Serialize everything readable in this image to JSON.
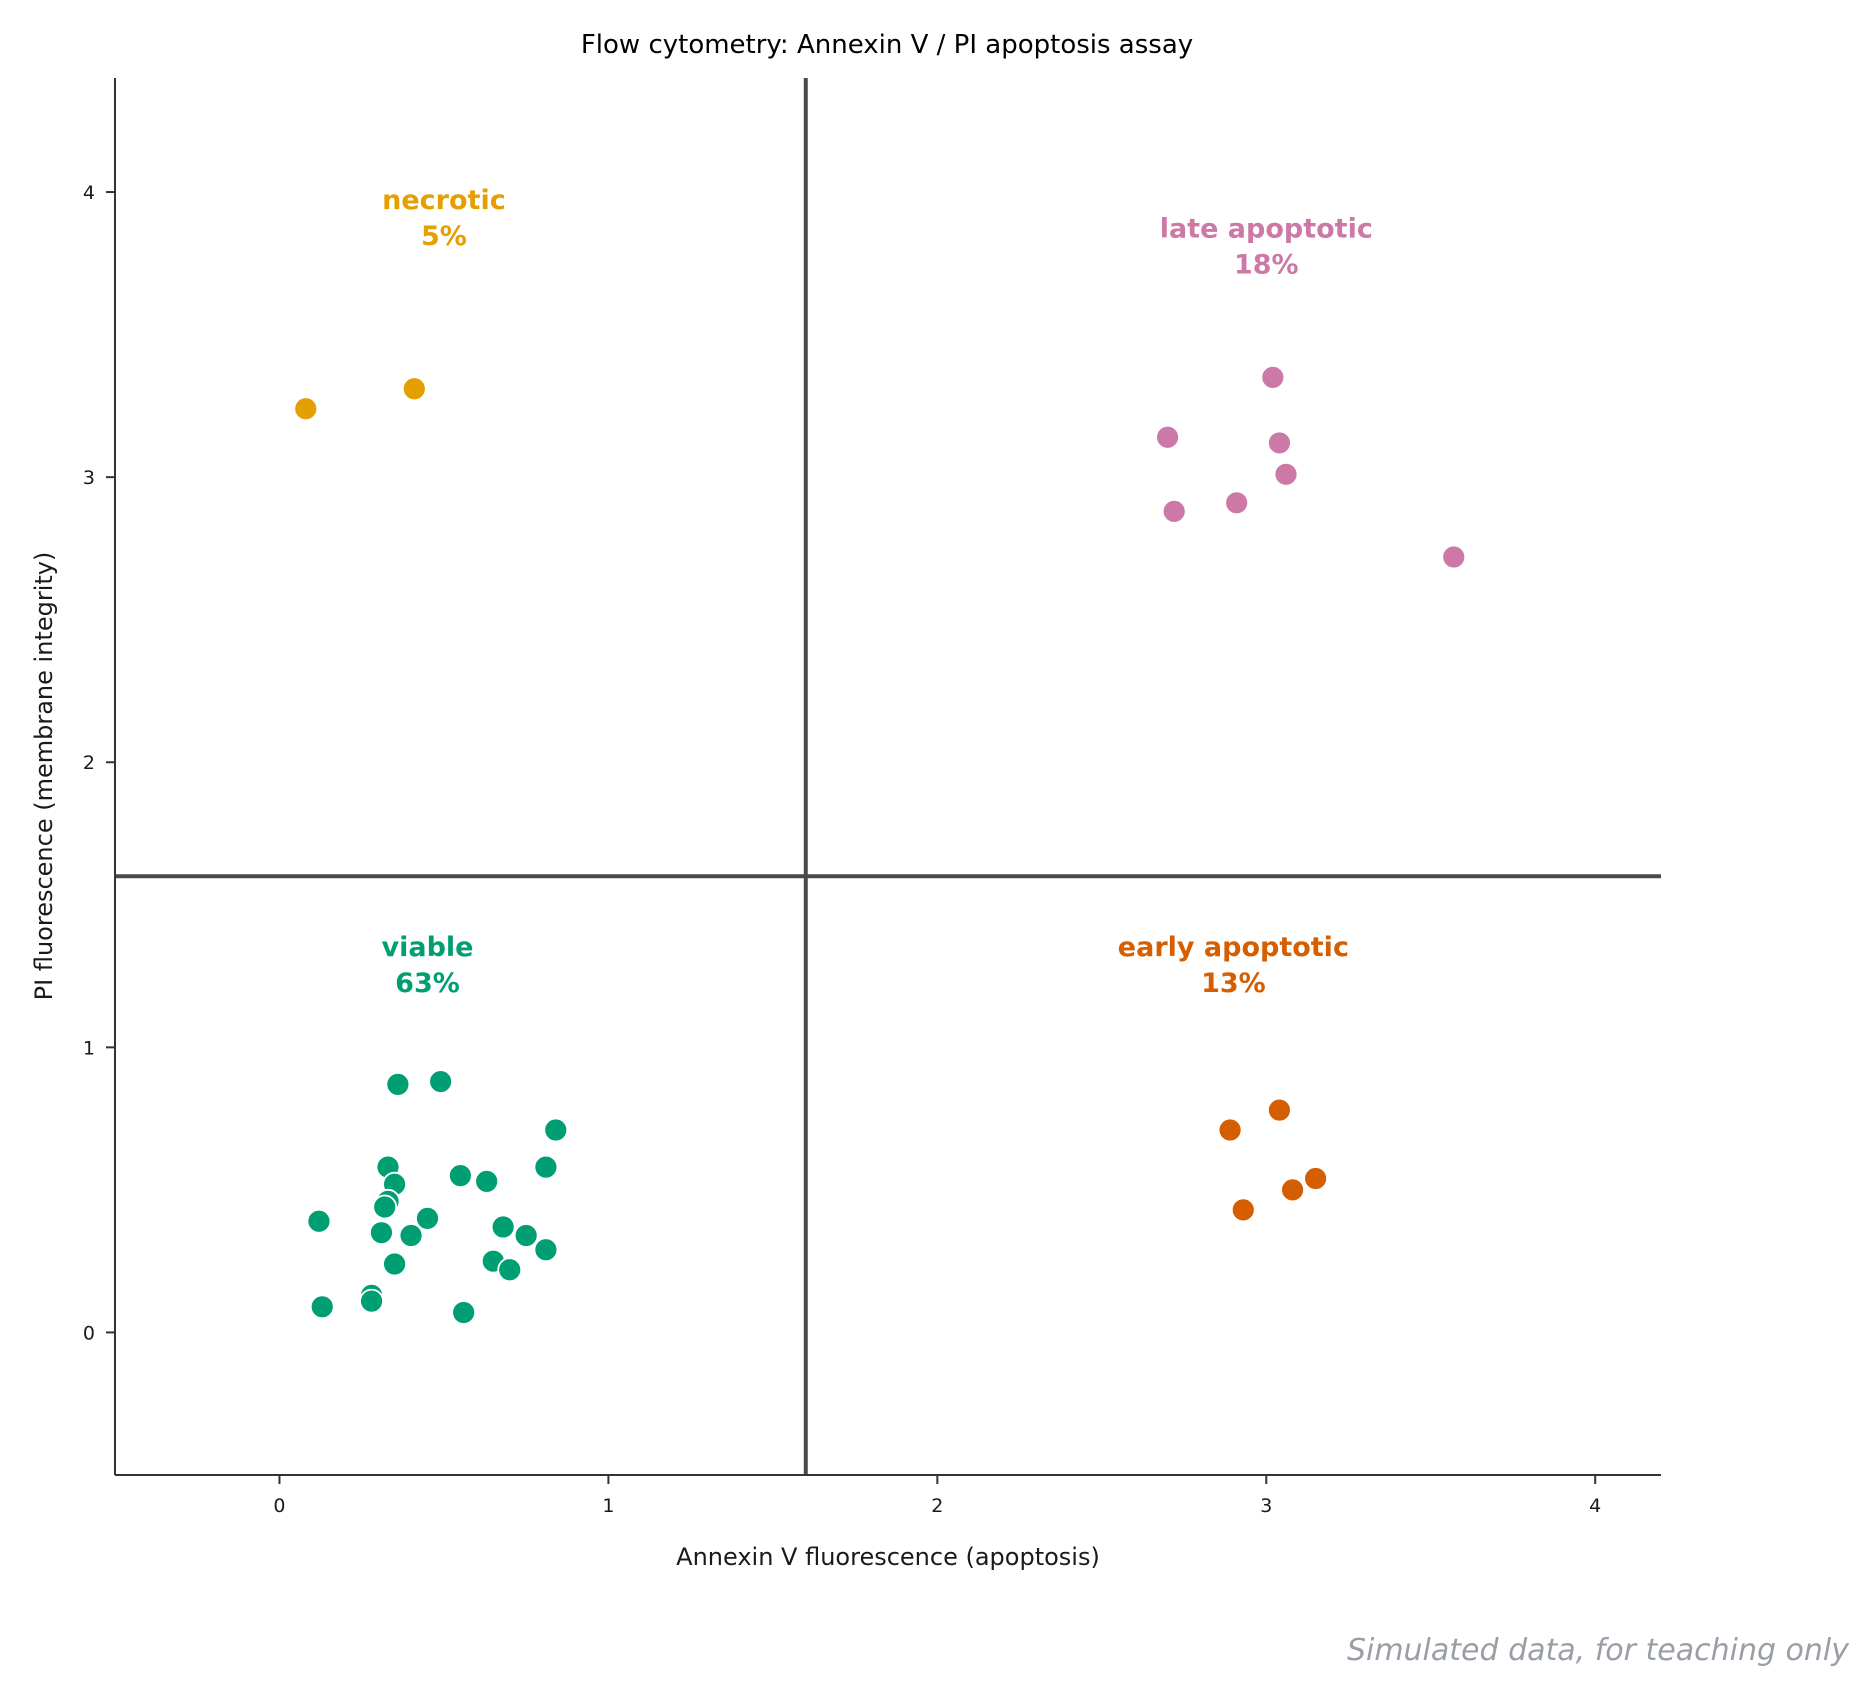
{
  "chart_data": {
    "type": "scatter",
    "title": "Flow cytometry: Annexin V / PI apoptosis assay",
    "xlabel": "Annexin V fluorescence (apoptosis)",
    "ylabel": "PI fluorescence (membrane integrity)",
    "xlim": [
      -0.5,
      4.2
    ],
    "ylim": [
      -0.5,
      4.4
    ],
    "xticks": [
      0,
      1,
      2,
      3,
      4
    ],
    "yticks": [
      0,
      1,
      2,
      3,
      4
    ],
    "gates": {
      "x": 1.6,
      "y": 1.6
    },
    "grid": false,
    "legend": "none",
    "series": [
      {
        "name": "viable",
        "color": "#009e73",
        "points": [
          [
            0.36,
            0.87
          ],
          [
            0.49,
            0.88
          ],
          [
            0.84,
            0.71
          ],
          [
            0.33,
            0.58
          ],
          [
            0.35,
            0.52
          ],
          [
            0.55,
            0.55
          ],
          [
            0.63,
            0.53
          ],
          [
            0.81,
            0.58
          ],
          [
            0.33,
            0.46
          ],
          [
            0.32,
            0.44
          ],
          [
            0.12,
            0.39
          ],
          [
            0.45,
            0.4
          ],
          [
            0.31,
            0.35
          ],
          [
            0.4,
            0.34
          ],
          [
            0.68,
            0.37
          ],
          [
            0.75,
            0.34
          ],
          [
            0.81,
            0.29
          ],
          [
            0.35,
            0.24
          ],
          [
            0.65,
            0.25
          ],
          [
            0.7,
            0.22
          ],
          [
            0.28,
            0.13
          ],
          [
            0.28,
            0.11
          ],
          [
            0.13,
            0.09
          ],
          [
            0.56,
            0.07
          ]
        ]
      },
      {
        "name": "early apoptotic",
        "color": "#d55e00",
        "points": [
          [
            3.04,
            0.78
          ],
          [
            2.89,
            0.71
          ],
          [
            3.15,
            0.54
          ],
          [
            3.08,
            0.5
          ],
          [
            2.93,
            0.43
          ]
        ]
      },
      {
        "name": "late apoptotic",
        "color": "#cc79a7",
        "points": [
          [
            3.02,
            3.35
          ],
          [
            2.7,
            3.14
          ],
          [
            3.04,
            3.12
          ],
          [
            3.06,
            3.01
          ],
          [
            2.91,
            2.91
          ],
          [
            2.72,
            2.88
          ],
          [
            3.57,
            2.72
          ]
        ]
      },
      {
        "name": "necrotic",
        "color": "#e69f00",
        "points": [
          [
            0.08,
            3.24
          ],
          [
            0.41,
            3.31
          ]
        ]
      }
    ],
    "annotations": [
      {
        "id": "viable",
        "name": "viable",
        "pct": "63%",
        "x": 0.45,
        "y": 1.3,
        "color": "#009e73"
      },
      {
        "id": "early",
        "name": "early apoptotic",
        "pct": "13%",
        "x": 2.9,
        "y": 1.3,
        "color": "#d55e00"
      },
      {
        "id": "late",
        "name": "late apoptotic",
        "pct": "18%",
        "x": 3.0,
        "y": 3.82,
        "color": "#cc79a7"
      },
      {
        "id": "necrotic",
        "name": "necrotic",
        "pct": "5%",
        "x": 0.5,
        "y": 3.92,
        "color": "#e69f00"
      }
    ]
  },
  "footnote": "Simulated data, for teaching only"
}
